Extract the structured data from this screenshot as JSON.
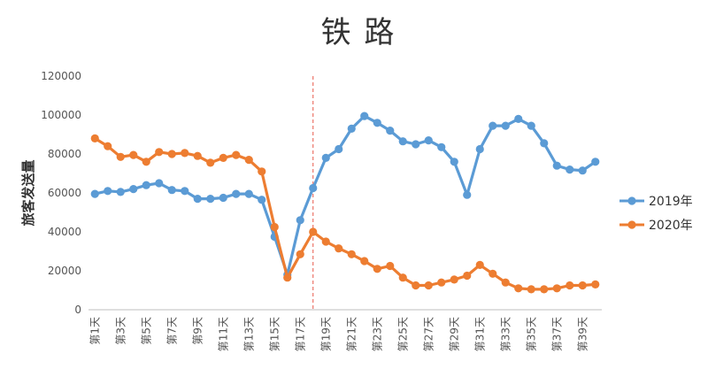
{
  "chart_data": {
    "type": "line",
    "title": "铁 路",
    "ylabel": "旅客发送量",
    "xlabel": "",
    "ylim": [
      0,
      120000
    ],
    "yticks": [
      "0",
      "20000",
      "40000",
      "60000",
      "80000",
      "100000",
      "120000"
    ],
    "categories": [
      "第1天",
      "第2天",
      "第3天",
      "第4天",
      "第5天",
      "第6天",
      "第7天",
      "第8天",
      "第9天",
      "第10天",
      "第11天",
      "第12天",
      "第13天",
      "第14天",
      "第15天",
      "第16天",
      "第17天",
      "第18天",
      "第19天",
      "第20天",
      "第21天",
      "第22天",
      "第23天",
      "第24天",
      "第25天",
      "第26天",
      "第27天",
      "第28天",
      "第29天",
      "第30天",
      "第31天",
      "第32天",
      "第33天",
      "第34天",
      "第35天",
      "第36天",
      "第37天",
      "第38天",
      "第39天",
      "第40天"
    ],
    "xtick_labels": [
      "第1天",
      "第3天",
      "第5天",
      "第7天",
      "第9天",
      "第11天",
      "第13天",
      "第15天",
      "第17天",
      "第19天",
      "第21天",
      "第23天",
      "第25天",
      "第27天",
      "第29天",
      "第31天",
      "第33天",
      "第35天",
      "第37天",
      "第39天"
    ],
    "series": [
      {
        "name": "2019年",
        "color": "#5B9BD5",
        "values": [
          59500,
          61000,
          60500,
          62000,
          64000,
          65000,
          61500,
          61000,
          57000,
          57000,
          57500,
          59500,
          59500,
          56500,
          37500,
          18000,
          46000,
          62500,
          78000,
          82500,
          93000,
          99500,
          96000,
          92000,
          86500,
          85000,
          87000,
          83500,
          76000,
          59000,
          82500,
          94500,
          94500,
          98000,
          94500,
          85500,
          74000,
          72000,
          71500,
          76000
        ]
      },
      {
        "name": "2020年",
        "color": "#ED7D31",
        "values": [
          88000,
          84000,
          78500,
          79500,
          76000,
          81000,
          80000,
          80500,
          79000,
          75500,
          78000,
          79500,
          77000,
          71000,
          42500,
          16500,
          28500,
          40000,
          35000,
          31500,
          28500,
          25000,
          21000,
          22500,
          16500,
          12500,
          12500,
          14000,
          15500,
          17500,
          23000,
          18500,
          14000,
          11000,
          10500,
          10500,
          11000,
          12500,
          12500,
          13000
        ]
      }
    ],
    "marker_line": {
      "category": "第18天",
      "color": "#E8594A",
      "style": "dashed"
    },
    "legend_position": "right",
    "grid": false
  }
}
